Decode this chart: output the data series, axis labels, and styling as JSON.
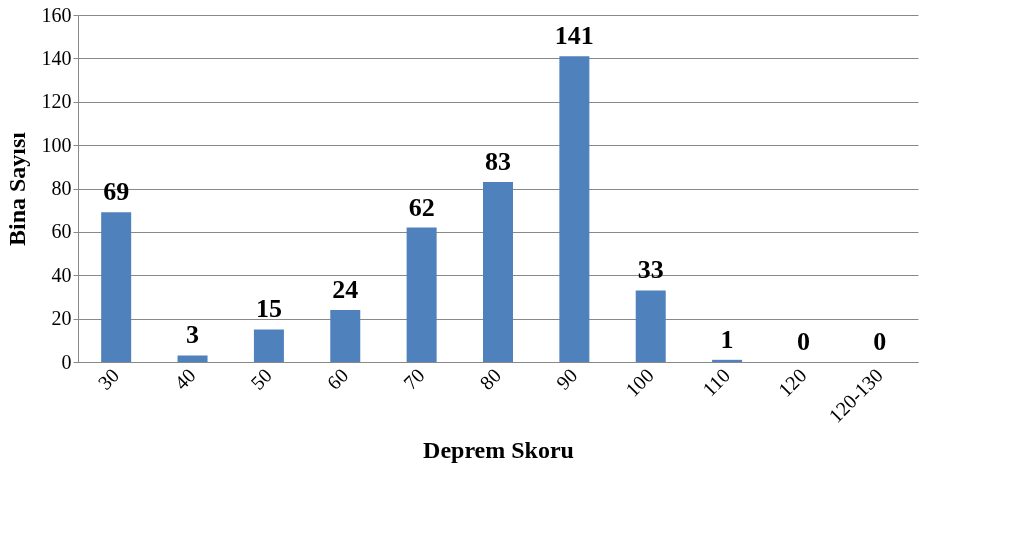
{
  "chart_data": {
    "type": "bar",
    "xlabel": "Deprem Skoru",
    "ylabel": "Bina Sayısı",
    "categories": [
      "30",
      "40",
      "50",
      "60",
      "70",
      "80",
      "90",
      "100",
      "110",
      "120",
      "120-130"
    ],
    "values": [
      69,
      3,
      15,
      24,
      62,
      83,
      141,
      33,
      1,
      0,
      0
    ],
    "color": "#4f81bd",
    "ylim": [
      0,
      160
    ],
    "yticks": [
      0,
      20,
      40,
      60,
      80,
      100,
      120,
      140,
      160
    ],
    "grid": "y",
    "data_labels": true
  }
}
